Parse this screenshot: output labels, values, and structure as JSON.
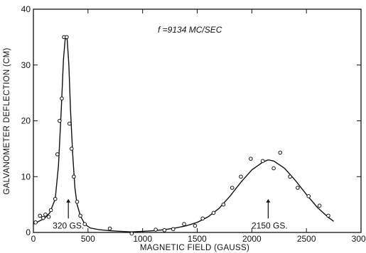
{
  "chart_data": {
    "type": "line",
    "title": "",
    "xlabel": "MAGNETIC FIELD (GAUSS)",
    "ylabel": "GALVANOMETER DEFLECTION (CM)",
    "xlim": [
      0,
      3000
    ],
    "ylim": [
      0,
      40
    ],
    "xticks": [
      0,
      500,
      1000,
      1500,
      2000,
      2500,
      3000
    ],
    "yticks": [
      0,
      10,
      20,
      30,
      40
    ],
    "xtick_labels": [
      "0",
      "500",
      "1000",
      "1500",
      "2000",
      "2500",
      "3000"
    ],
    "ytick_labels": [
      "0",
      "10",
      "20",
      "30",
      "40"
    ],
    "grid": false,
    "annotations": {
      "frequency": "f =9134 MC/SEC",
      "peak1": {
        "text": "320 GS.",
        "x": 320,
        "arrow_y": [
          2.5,
          6
        ]
      },
      "peak2": {
        "text": "2150 GS.",
        "x": 2150,
        "arrow_y": [
          2.5,
          6
        ]
      }
    },
    "series": [
      {
        "role": "measured points",
        "style": "markers",
        "points": [
          [
            20,
            1.8
          ],
          [
            60,
            3.0
          ],
          [
            90,
            2.6
          ],
          [
            110,
            3.2
          ],
          [
            140,
            2.8
          ],
          [
            160,
            4.0
          ],
          [
            200,
            6.0
          ],
          [
            220,
            14.0
          ],
          [
            240,
            20.0
          ],
          [
            260,
            24.0
          ],
          [
            280,
            35.0
          ],
          [
            305,
            35.0
          ],
          [
            330,
            19.5
          ],
          [
            350,
            15.0
          ],
          [
            370,
            10.0
          ],
          [
            400,
            5.5
          ],
          [
            430,
            3.0
          ],
          [
            470,
            1.5
          ],
          [
            700,
            0.7
          ],
          [
            900,
            -0.2
          ],
          [
            1120,
            0.5
          ],
          [
            1200,
            0.4
          ],
          [
            1280,
            0.6
          ],
          [
            1380,
            1.5
          ],
          [
            1480,
            1.2
          ],
          [
            1550,
            2.5
          ],
          [
            1650,
            3.5
          ],
          [
            1740,
            5.0
          ],
          [
            1820,
            8.0
          ],
          [
            1900,
            10.0
          ],
          [
            1990,
            13.2
          ],
          [
            2100,
            12.8
          ],
          [
            2200,
            11.5
          ],
          [
            2260,
            14.3
          ],
          [
            2350,
            10.0
          ],
          [
            2420,
            8.0
          ],
          [
            2520,
            6.5
          ],
          [
            2620,
            4.8
          ],
          [
            2700,
            3.0
          ]
        ]
      },
      {
        "role": "fitted curve",
        "style": "line",
        "points": [
          [
            0,
            1.5
          ],
          [
            50,
            2.0
          ],
          [
            100,
            2.5
          ],
          [
            150,
            3.5
          ],
          [
            200,
            6.0
          ],
          [
            230,
            12.0
          ],
          [
            255,
            22.0
          ],
          [
            275,
            31.0
          ],
          [
            290,
            34.5
          ],
          [
            300,
            35.0
          ],
          [
            310,
            34.5
          ],
          [
            325,
            30.0
          ],
          [
            340,
            22.0
          ],
          [
            360,
            14.0
          ],
          [
            380,
            8.0
          ],
          [
            400,
            5.0
          ],
          [
            430,
            3.0
          ],
          [
            470,
            1.5
          ],
          [
            520,
            0.8
          ],
          [
            600,
            0.5
          ],
          [
            700,
            0.3
          ],
          [
            800,
            0.2
          ],
          [
            900,
            0.1
          ],
          [
            1000,
            0.2
          ],
          [
            1100,
            0.3
          ],
          [
            1200,
            0.5
          ],
          [
            1300,
            0.8
          ],
          [
            1400,
            1.2
          ],
          [
            1500,
            1.8
          ],
          [
            1600,
            2.8
          ],
          [
            1700,
            4.3
          ],
          [
            1800,
            6.5
          ],
          [
            1900,
            9.0
          ],
          [
            2000,
            11.2
          ],
          [
            2100,
            12.6
          ],
          [
            2150,
            13.0
          ],
          [
            2200,
            12.8
          ],
          [
            2300,
            11.5
          ],
          [
            2400,
            9.3
          ],
          [
            2500,
            6.8
          ],
          [
            2600,
            4.5
          ],
          [
            2700,
            2.7
          ],
          [
            2750,
            2.0
          ]
        ]
      }
    ]
  }
}
